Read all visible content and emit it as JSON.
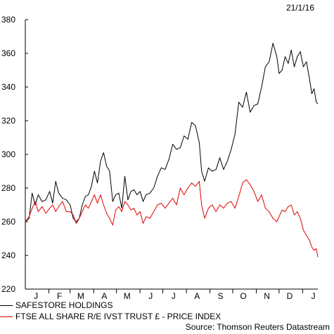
{
  "date_stamp": "21/1/16",
  "source": "Source: Thomson Reuters Datastream",
  "legend": [
    {
      "label": "SAFESTORE HOLDINGS",
      "color": "#000000"
    },
    {
      "label": "FTSE ALL SHARE R/E IVST TRUST £ - PRICE INDEX",
      "color": "#e00000"
    }
  ],
  "chart_data": {
    "type": "line",
    "ylim": [
      220,
      380
    ],
    "yticks": [
      220,
      240,
      260,
      280,
      300,
      320,
      340,
      360,
      380
    ],
    "x_tick_labels": [
      "J",
      "F",
      "M",
      "A",
      "M",
      "J",
      "J",
      "A",
      "S",
      "O",
      "N",
      "D",
      "J"
    ],
    "x_tick_dates": [
      "2015-01-15",
      "2015-02-15",
      "2015-03-15",
      "2015-04-15",
      "2015-05-15",
      "2015-06-15",
      "2015-07-15",
      "2015-08-15",
      "2015-09-15",
      "2015-10-15",
      "2015-11-15",
      "2015-12-15",
      "2016-01-15"
    ],
    "x_range": [
      "2015-01-01",
      "2016-01-21"
    ],
    "series": [
      {
        "name": "SAFESTORE HOLDINGS",
        "color": "#000000",
        "points": [
          [
            "2015-01-01",
            260
          ],
          [
            "2015-01-06",
            262
          ],
          [
            "2015-01-10",
            277
          ],
          [
            "2015-01-14",
            270
          ],
          [
            "2015-01-18",
            276
          ],
          [
            "2015-01-23",
            272
          ],
          [
            "2015-01-28",
            273
          ],
          [
            "2015-02-02",
            278
          ],
          [
            "2015-02-06",
            271
          ],
          [
            "2015-02-10",
            284
          ],
          [
            "2015-02-14",
            277
          ],
          [
            "2015-02-19",
            274
          ],
          [
            "2015-02-24",
            273
          ],
          [
            "2015-03-01",
            270
          ],
          [
            "2015-03-05",
            262
          ],
          [
            "2015-03-09",
            260
          ],
          [
            "2015-03-13",
            262
          ],
          [
            "2015-03-17",
            270
          ],
          [
            "2015-03-21",
            275
          ],
          [
            "2015-03-25",
            276
          ],
          [
            "2015-03-29",
            281
          ],
          [
            "2015-04-02",
            290
          ],
          [
            "2015-04-06",
            283
          ],
          [
            "2015-04-10",
            296
          ],
          [
            "2015-04-14",
            301
          ],
          [
            "2015-04-18",
            293
          ],
          [
            "2015-04-22",
            290
          ],
          [
            "2015-04-26",
            272
          ],
          [
            "2015-04-30",
            276
          ],
          [
            "2015-05-04",
            277
          ],
          [
            "2015-05-08",
            268
          ],
          [
            "2015-05-12",
            287
          ],
          [
            "2015-05-16",
            273
          ],
          [
            "2015-05-20",
            278
          ],
          [
            "2015-05-24",
            279
          ],
          [
            "2015-05-28",
            276
          ],
          [
            "2015-06-01",
            278
          ],
          [
            "2015-06-05",
            272
          ],
          [
            "2015-06-09",
            276
          ],
          [
            "2015-06-14",
            277
          ],
          [
            "2015-06-19",
            280
          ],
          [
            "2015-06-24",
            287
          ],
          [
            "2015-06-29",
            292
          ],
          [
            "2015-07-04",
            291
          ],
          [
            "2015-07-09",
            297
          ],
          [
            "2015-07-14",
            306
          ],
          [
            "2015-07-19",
            303
          ],
          [
            "2015-07-24",
            304
          ],
          [
            "2015-07-29",
            311
          ],
          [
            "2015-08-03",
            309
          ],
          [
            "2015-08-08",
            319
          ],
          [
            "2015-08-13",
            317
          ],
          [
            "2015-08-18",
            307
          ],
          [
            "2015-08-21",
            290
          ],
          [
            "2015-08-25",
            284
          ],
          [
            "2015-08-30",
            292
          ],
          [
            "2015-09-04",
            290
          ],
          [
            "2015-09-09",
            291
          ],
          [
            "2015-09-14",
            298
          ],
          [
            "2015-09-19",
            291
          ],
          [
            "2015-09-24",
            296
          ],
          [
            "2015-09-29",
            303
          ],
          [
            "2015-10-04",
            312
          ],
          [
            "2015-10-09",
            331
          ],
          [
            "2015-10-14",
            328
          ],
          [
            "2015-10-19",
            337
          ],
          [
            "2015-10-24",
            325
          ],
          [
            "2015-10-29",
            329
          ],
          [
            "2015-11-03",
            330
          ],
          [
            "2015-11-08",
            340
          ],
          [
            "2015-11-13",
            352
          ],
          [
            "2015-11-18",
            355
          ],
          [
            "2015-11-23",
            366
          ],
          [
            "2015-11-28",
            358
          ],
          [
            "2015-12-01",
            348
          ],
          [
            "2015-12-05",
            350
          ],
          [
            "2015-12-09",
            358
          ],
          [
            "2015-12-13",
            354
          ],
          [
            "2015-12-17",
            362
          ],
          [
            "2015-12-21",
            352
          ],
          [
            "2015-12-25",
            358
          ],
          [
            "2015-12-29",
            361
          ],
          [
            "2016-01-02",
            352
          ],
          [
            "2016-01-06",
            355
          ],
          [
            "2016-01-10",
            345
          ],
          [
            "2016-01-13",
            336
          ],
          [
            "2016-01-16",
            339
          ],
          [
            "2016-01-19",
            331
          ],
          [
            "2016-01-21",
            330
          ]
        ]
      },
      {
        "name": "FTSE ALL SHARE R/E IVST TRUST £ - PRICE INDEX",
        "color": "#e00000",
        "points": [
          [
            "2015-01-01",
            260
          ],
          [
            "2015-01-06",
            263
          ],
          [
            "2015-01-10",
            268
          ],
          [
            "2015-01-14",
            272
          ],
          [
            "2015-01-18",
            266
          ],
          [
            "2015-01-23",
            269
          ],
          [
            "2015-01-28",
            265
          ],
          [
            "2015-02-02",
            268
          ],
          [
            "2015-02-06",
            270
          ],
          [
            "2015-02-10",
            266
          ],
          [
            "2015-02-14",
            269
          ],
          [
            "2015-02-19",
            272
          ],
          [
            "2015-02-24",
            266
          ],
          [
            "2015-03-01",
            266
          ],
          [
            "2015-03-05",
            264
          ],
          [
            "2015-03-09",
            259
          ],
          [
            "2015-03-13",
            262
          ],
          [
            "2015-03-17",
            266
          ],
          [
            "2015-03-21",
            270
          ],
          [
            "2015-03-25",
            268
          ],
          [
            "2015-03-29",
            272
          ],
          [
            "2015-04-02",
            276
          ],
          [
            "2015-04-06",
            271
          ],
          [
            "2015-04-10",
            276
          ],
          [
            "2015-04-14",
            270
          ],
          [
            "2015-04-18",
            265
          ],
          [
            "2015-04-22",
            262
          ],
          [
            "2015-04-26",
            258
          ],
          [
            "2015-04-30",
            267
          ],
          [
            "2015-05-04",
            269
          ],
          [
            "2015-05-08",
            266
          ],
          [
            "2015-05-12",
            272
          ],
          [
            "2015-05-16",
            270
          ],
          [
            "2015-05-20",
            267
          ],
          [
            "2015-05-24",
            268
          ],
          [
            "2015-05-28",
            264
          ],
          [
            "2015-06-01",
            266
          ],
          [
            "2015-06-05",
            259
          ],
          [
            "2015-06-09",
            263
          ],
          [
            "2015-06-14",
            262
          ],
          [
            "2015-06-19",
            266
          ],
          [
            "2015-06-24",
            270
          ],
          [
            "2015-06-29",
            271
          ],
          [
            "2015-07-04",
            268
          ],
          [
            "2015-07-09",
            271
          ],
          [
            "2015-07-14",
            274
          ],
          [
            "2015-07-19",
            270
          ],
          [
            "2015-07-24",
            280
          ],
          [
            "2015-07-29",
            276
          ],
          [
            "2015-08-03",
            280
          ],
          [
            "2015-08-08",
            283
          ],
          [
            "2015-08-13",
            281
          ],
          [
            "2015-08-18",
            284
          ],
          [
            "2015-08-21",
            270
          ],
          [
            "2015-08-25",
            262
          ],
          [
            "2015-08-30",
            268
          ],
          [
            "2015-09-04",
            270
          ],
          [
            "2015-09-09",
            266
          ],
          [
            "2015-09-14",
            270
          ],
          [
            "2015-09-19",
            268
          ],
          [
            "2015-09-24",
            271
          ],
          [
            "2015-09-29",
            272
          ],
          [
            "2015-10-04",
            268
          ],
          [
            "2015-10-09",
            275
          ],
          [
            "2015-10-14",
            283
          ],
          [
            "2015-10-19",
            285
          ],
          [
            "2015-10-24",
            282
          ],
          [
            "2015-10-29",
            278
          ],
          [
            "2015-11-03",
            272
          ],
          [
            "2015-11-08",
            276
          ],
          [
            "2015-11-13",
            268
          ],
          [
            "2015-11-18",
            266
          ],
          [
            "2015-11-23",
            262
          ],
          [
            "2015-11-28",
            260
          ],
          [
            "2015-12-01",
            263
          ],
          [
            "2015-12-05",
            267
          ],
          [
            "2015-12-09",
            266
          ],
          [
            "2015-12-13",
            269
          ],
          [
            "2015-12-17",
            270
          ],
          [
            "2015-12-21",
            264
          ],
          [
            "2015-12-25",
            266
          ],
          [
            "2015-12-29",
            262
          ],
          [
            "2016-01-02",
            255
          ],
          [
            "2016-01-06",
            252
          ],
          [
            "2016-01-10",
            249
          ],
          [
            "2016-01-13",
            245
          ],
          [
            "2016-01-16",
            243
          ],
          [
            "2016-01-19",
            244
          ],
          [
            "2016-01-21",
            239
          ]
        ]
      }
    ]
  }
}
